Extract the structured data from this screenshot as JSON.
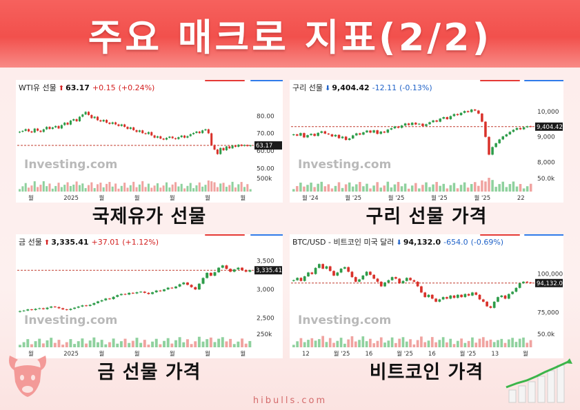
{
  "page": {
    "title": "주요 매크로 지표(2/2)",
    "footer": "hibulls.com"
  },
  "colors": {
    "banner": "#f2504c",
    "up": "#d32020",
    "down": "#1f62c8",
    "candle_up": "#2e9c4a",
    "candle_down": "#d9322b",
    "dashed_line": "#c0392b",
    "watermark": "#b9b9b9"
  },
  "icons": [
    "bull-logo-icon",
    "rising-bars-icon",
    "up-arrow-icon",
    "down-arrow-icon"
  ],
  "chart_data": [
    {
      "type": "candlestick",
      "name": "WTI유 선물",
      "price": "63.17",
      "change": "+0.15",
      "change_pct": "(+0.24%)",
      "direction": "up",
      "caption": "국제유가 선물",
      "watermark": "Investing.com",
      "y_ticks": [
        "80.00",
        "70.00",
        "60.00",
        "50.00"
      ],
      "y_values": [
        80,
        70,
        60,
        50
      ],
      "ylim": [
        47,
        92
      ],
      "volume_label": "500k",
      "x_labels": [
        "월",
        "2025",
        "월",
        "월",
        "월",
        "월",
        "월"
      ],
      "last_label": "63.17",
      "last_value": 63.17,
      "points": [
        71,
        71.5,
        72.5,
        71.2,
        70.6,
        72.8,
        71.6,
        70.9,
        72.4,
        73.8,
        72.6,
        73.5,
        74.3,
        72.9,
        74.8,
        76.2,
        75.1,
        77.4,
        78.2,
        77.0,
        79.6,
        80.9,
        82.4,
        80.6,
        78.8,
        79.6,
        77.6,
        76.9,
        77.8,
        76.2,
        75.5,
        76.4,
        75.2,
        74.3,
        75.2,
        73.8,
        72.6,
        73.5,
        71.9,
        70.9,
        71.8,
        70.2,
        69.7,
        70.8,
        68.9,
        67.6,
        68.4,
        67.1,
        66.5,
        67.5,
        68.2,
        67.3,
        66.8,
        67.9,
        68.8,
        67.6,
        68.5,
        69.6,
        70.3,
        71.1,
        70.2,
        71.8,
        72.4,
        70.1,
        63.4,
        60.8,
        58.2,
        61.7,
        60.4,
        62.6,
        61.5,
        63.1,
        62.4,
        63.6,
        62.9,
        63.4,
        62.8,
        63.17
      ]
    },
    {
      "type": "candlestick",
      "name": "구리 선물",
      "price": "9,404.42",
      "change": "-12.11",
      "change_pct": "(-0.13%)",
      "direction": "down",
      "caption": "구리 선물 가격",
      "watermark": "Investing.com",
      "y_ticks": [
        "10,000",
        "9,000",
        "8,000"
      ],
      "y_values": [
        10000,
        9000,
        8000
      ],
      "ylim": [
        7550,
        10650
      ],
      "volume_label": "50.0k",
      "x_labels": [
        "월 '24",
        "월 '25",
        "월 '25",
        "월 '25",
        "월 '25",
        "22"
      ],
      "last_label": "9,404.42",
      "last_value": 9404.42,
      "points": [
        9100,
        9050,
        9150,
        8980,
        9070,
        9120,
        9040,
        9160,
        9220,
        9130,
        9100,
        9020,
        9080,
        8950,
        9010,
        8880,
        8940,
        9060,
        9140,
        9090,
        9180,
        9250,
        9170,
        9260,
        9120,
        9210,
        9170,
        9290,
        9340,
        9410,
        9360,
        9450,
        9530,
        9470,
        9560,
        9490,
        9520,
        9430,
        9500,
        9580,
        9650,
        9600,
        9720,
        9780,
        9700,
        9820,
        9900,
        9860,
        9950,
        10020,
        9980,
        10080,
        10040,
        9920,
        9600,
        9000,
        8300,
        8600,
        8750,
        8900,
        9020,
        9100,
        9200,
        9280,
        9350,
        9300,
        9380,
        9420,
        9404
      ]
    },
    {
      "type": "candlestick",
      "name": "금 선물",
      "price": "3,335.41",
      "change": "+37.01",
      "change_pct": "(+1.12%)",
      "direction": "up",
      "caption": "금 선물 가격",
      "watermark": "Investing.com",
      "y_ticks": [
        "3,500",
        "3,000",
        "2,500"
      ],
      "y_values": [
        3500,
        3000,
        2500
      ],
      "ylim": [
        2300,
        3700
      ],
      "volume_label": "250k",
      "x_labels": [
        "월",
        "2025",
        "월",
        "월",
        "월",
        "월",
        "월"
      ],
      "last_label": "3,335.41",
      "last_value": 3335.41,
      "points": [
        2620,
        2630,
        2650,
        2640,
        2660,
        2670,
        2655,
        2680,
        2700,
        2690,
        2670,
        2650,
        2640,
        2660,
        2680,
        2700,
        2720,
        2710,
        2730,
        2760,
        2790,
        2810,
        2840,
        2830,
        2870,
        2900,
        2920,
        2910,
        2940,
        2930,
        2950,
        2960,
        2940,
        2920,
        2950,
        2980,
        2970,
        3000,
        3030,
        3020,
        3050,
        3090,
        3120,
        3080,
        3040,
        3000,
        3100,
        3200,
        3290,
        3240,
        3300,
        3380,
        3420,
        3360,
        3310,
        3350,
        3380,
        3340,
        3310,
        3335
      ]
    },
    {
      "type": "candlestick",
      "name": "BTC/USD - 비트코인 미국 달러",
      "price": "94,132.0",
      "change": "-654.0",
      "change_pct": "(-0.69%)",
      "direction": "down",
      "caption": "비트코인 가격",
      "watermark": "Investing.com",
      "y_ticks": [
        "100,000",
        "75,000"
      ],
      "y_values": [
        100000,
        75000
      ],
      "ylim": [
        64000,
        116000
      ],
      "volume_label": "50.0k",
      "x_labels": [
        "12",
        "월 '25",
        "16",
        "월 '25",
        "16",
        "월 '25",
        "13",
        "월"
      ],
      "last_label": "94,132.00",
      "last_value": 94132,
      "points": [
        96000,
        97500,
        95500,
        98500,
        101000,
        100000,
        104000,
        106500,
        103500,
        105000,
        102000,
        99000,
        101000,
        103500,
        104500,
        101500,
        98000,
        95000,
        96500,
        99000,
        101500,
        99500,
        97000,
        95000,
        92000,
        94500,
        96000,
        98000,
        97000,
        94000,
        95500,
        97500,
        96000,
        95000,
        92000,
        88000,
        85000,
        86500,
        84000,
        82000,
        83500,
        85000,
        84000,
        86000,
        84500,
        86500,
        85000,
        87000,
        86000,
        88000,
        86500,
        83500,
        82000,
        79000,
        78000,
        82000,
        85000,
        86000,
        84000,
        87000,
        88500,
        91000,
        94000,
        95000,
        94500,
        94132
      ]
    }
  ]
}
